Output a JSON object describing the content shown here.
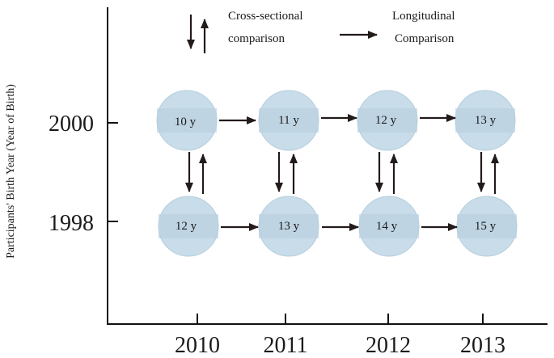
{
  "legend": {
    "cross_label_line1": "Cross-sectional",
    "cross_label_line2": "comparison",
    "long_label_line1": "Longitudinal",
    "long_label_line2": "Comparison"
  },
  "axes": {
    "y_title": "Participants' Birth Year (Year of Birth)",
    "y_ticks": [
      "2000",
      "1998"
    ],
    "x_ticks": [
      "2010",
      "2011",
      "2012",
      "2013"
    ]
  },
  "cohorts": [
    {
      "birth_year": "2000",
      "ages": [
        "10 y",
        "11 y",
        "12 y",
        "13 y"
      ]
    },
    {
      "birth_year": "1998",
      "ages": [
        "12 y",
        "13 y",
        "14 y",
        "15 y"
      ]
    }
  ],
  "colors": {
    "circle": "#c8dce9",
    "arrow": "#231a1a",
    "axis": "#111111"
  }
}
